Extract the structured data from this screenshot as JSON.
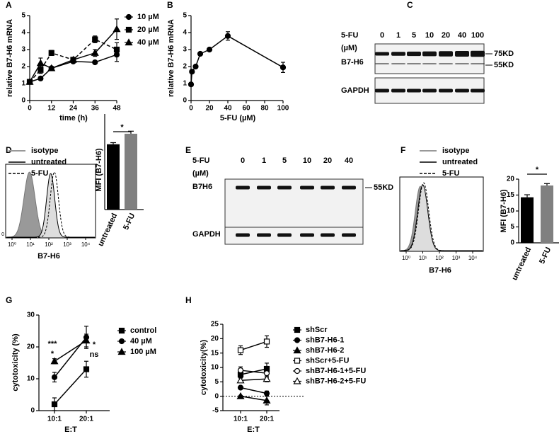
{
  "chart_data": [
    {
      "type": "line",
      "panel": "A",
      "xlabel": "time (h)",
      "ylabel": "relative B7-H6 mRNA",
      "x": [
        0,
        6,
        12,
        24,
        36,
        48
      ],
      "xlim": [
        0,
        48
      ],
      "xticks": [
        0,
        12,
        24,
        36,
        48
      ],
      "ylim": [
        0,
        5
      ],
      "yticks": [
        0,
        1,
        2,
        3,
        4,
        5
      ],
      "series": [
        {
          "name": "10 µM",
          "color": "#000000",
          "marker": "circle",
          "filled": true,
          "values": [
            1.1,
            1.3,
            1.9,
            2.3,
            2.25,
            2.7
          ],
          "errors": [
            0.1,
            0.1,
            0.1,
            0.1,
            0.1,
            0.4
          ]
        },
        {
          "name": "20 µM",
          "color": "#000000",
          "marker": "square",
          "filled": true,
          "dash": true,
          "values": [
            1.1,
            1.8,
            2.8,
            2.4,
            3.6,
            3.0
          ],
          "errors": [
            0.1,
            0.2,
            0.15,
            0.1,
            0.2,
            0.4
          ]
        },
        {
          "name": "40 µM",
          "color": "#000000",
          "marker": "triangle",
          "filled": true,
          "values": [
            1.1,
            2.2,
            1.9,
            2.4,
            2.8,
            4.2
          ],
          "errors": [
            0.1,
            0.3,
            0.1,
            0.1,
            0.2,
            0.6
          ]
        }
      ]
    },
    {
      "type": "line",
      "panel": "B",
      "xlabel": "5-FU (µM)",
      "ylabel": "relative B7-H6 mRNA",
      "x": [
        0,
        1,
        5,
        10,
        20,
        40,
        100
      ],
      "xlim": [
        0,
        100
      ],
      "xticks": [
        0,
        20,
        40,
        60,
        80,
        100
      ],
      "ylim": [
        0,
        5
      ],
      "yticks": [
        0,
        1,
        2,
        3,
        4,
        5
      ],
      "series": [
        {
          "color": "#000000",
          "marker": "circle",
          "filled": true,
          "values": [
            0.95,
            1.7,
            2.0,
            2.75,
            3.0,
            3.8,
            1.95
          ],
          "errors": [
            0.05,
            0.1,
            0.1,
            0.1,
            0.1,
            0.25,
            0.3
          ]
        }
      ]
    },
    {
      "type": "blot",
      "panel": "C",
      "treatment": "5-FU",
      "unit": "(µM)",
      "lanes": [
        "0",
        "1",
        "5",
        "10",
        "20",
        "40",
        "100"
      ],
      "rows": [
        "B7-H6",
        "GAPDH"
      ],
      "markers": [
        "75KD",
        "55KD"
      ]
    },
    {
      "type": "flow",
      "panel": "D",
      "xlabel": "B7-H6",
      "xscale": "log",
      "xlim": [
        1,
        10000
      ],
      "xticks": [
        {
          "value": 1,
          "label": "10⁰"
        },
        {
          "value": 10,
          "label": "10¹"
        },
        {
          "value": 100,
          "label": "10²"
        },
        {
          "value": 1000,
          "label": "10³"
        },
        {
          "value": 10000,
          "label": "10⁴"
        }
      ],
      "yticks": [
        0
      ],
      "series": [
        {
          "name": "isotype",
          "color": "#999999",
          "fill": true
        },
        {
          "name": "untreated",
          "color": "#000000"
        },
        {
          "name": "5-FU",
          "color": "#000000",
          "dash": true
        }
      ]
    },
    {
      "type": "bar",
      "ylabel": "MFI (B7-H6)",
      "categories": [
        "untreated",
        "5-FU"
      ],
      "values": [
        205,
        238
      ],
      "errors": [
        5,
        8
      ],
      "colors": [
        "#000000",
        "#808080"
      ],
      "ylim": [
        0,
        300
      ],
      "significance": "*"
    },
    {
      "type": "blot",
      "panel": "E",
      "treatment": "5-FU",
      "unit": "(µM)",
      "lanes": [
        "0",
        "1",
        "5",
        "10",
        "20",
        "40"
      ],
      "rows": [
        "B7H6",
        "GAPDH"
      ],
      "markers": [
        "55KD"
      ]
    },
    {
      "type": "flow",
      "panel": "F",
      "xlabel": "B7-H6",
      "xscale": "log",
      "xlim": [
        1,
        10000
      ],
      "xticks": [
        {
          "value": 1,
          "label": "10⁰"
        },
        {
          "value": 10,
          "label": "10¹"
        },
        {
          "value": 100,
          "label": "10²"
        },
        {
          "value": 1000,
          "label": "10³"
        },
        {
          "value": 10000,
          "label": "10⁴"
        }
      ],
      "series": [
        {
          "name": "isotype",
          "color": "#999999",
          "fill": true
        },
        {
          "name": "untreated",
          "color": "#000000"
        },
        {
          "name": "5-FU",
          "color": "#000000",
          "dash": true
        }
      ]
    },
    {
      "type": "bar",
      "ylabel": "MFI (B7-H6)",
      "categories": [
        "untreated",
        "5-FU"
      ],
      "values": [
        14.3,
        18.0
      ],
      "errors": [
        0.8,
        0.6
      ],
      "colors": [
        "#000000",
        "#808080"
      ],
      "ylim": [
        0,
        20
      ],
      "yticks": [
        0,
        5,
        10,
        15,
        20
      ],
      "significance": "*"
    },
    {
      "type": "line",
      "panel": "G",
      "xlabel": "E:T",
      "ylabel": "cytotoxicity (%)",
      "categories": [
        "10:1",
        "20:1"
      ],
      "ylim": [
        0,
        30
      ],
      "yticks": [
        0,
        10,
        20,
        30
      ],
      "annotations": [
        "***",
        "*",
        "*",
        "ns"
      ],
      "series": [
        {
          "name": "control",
          "color": "#000000",
          "marker": "square",
          "filled": true,
          "values": [
            2,
            13
          ],
          "errors": [
            2,
            2.5
          ]
        },
        {
          "name": "40 µM",
          "color": "#000000",
          "marker": "circle",
          "filled": true,
          "values": [
            10.5,
            23
          ],
          "errors": [
            1.5,
            3.5
          ]
        },
        {
          "name": "100 µM",
          "color": "#000000",
          "marker": "triangle",
          "filled": true,
          "values": [
            15.5,
            22
          ],
          "errors": [
            0.8,
            2
          ]
        }
      ]
    },
    {
      "type": "line",
      "panel": "H",
      "xlabel": "E:T",
      "ylabel": "cytotoxicity(%)",
      "categories": [
        "10:1",
        "20:1"
      ],
      "ylim": [
        -5,
        25
      ],
      "yticks": [
        -5,
        0,
        5,
        10,
        15,
        20,
        25
      ],
      "hline": 0,
      "series": [
        {
          "name": "shScr",
          "color": "#000000",
          "marker": "square",
          "filled": true,
          "values": [
            7.5,
            9.5
          ],
          "errors": [
            1,
            2
          ]
        },
        {
          "name": "shB7-H6-1",
          "color": "#000000",
          "marker": "circle",
          "filled": true,
          "values": [
            3,
            1
          ],
          "errors": [
            0.5,
            0.8
          ]
        },
        {
          "name": "shB7-H6-2",
          "color": "#000000",
          "marker": "triangle",
          "filled": true,
          "values": [
            0,
            -1.5
          ],
          "errors": [
            0.3,
            1.5
          ]
        },
        {
          "name": "shScr+5-FU",
          "color": "#000000",
          "marker": "square",
          "filled": false,
          "values": [
            16,
            19
          ],
          "errors": [
            1.5,
            2
          ]
        },
        {
          "name": "shB7-H6-1+5-FU",
          "color": "#000000",
          "marker": "circle",
          "filled": false,
          "values": [
            9,
            8
          ],
          "errors": [
            1.2,
            1.5
          ]
        },
        {
          "name": "shB7-H6-2+5-FU",
          "color": "#000000",
          "marker": "triangle",
          "filled": false,
          "values": [
            5.5,
            6
          ],
          "errors": [
            0.8,
            1
          ]
        }
      ]
    }
  ]
}
